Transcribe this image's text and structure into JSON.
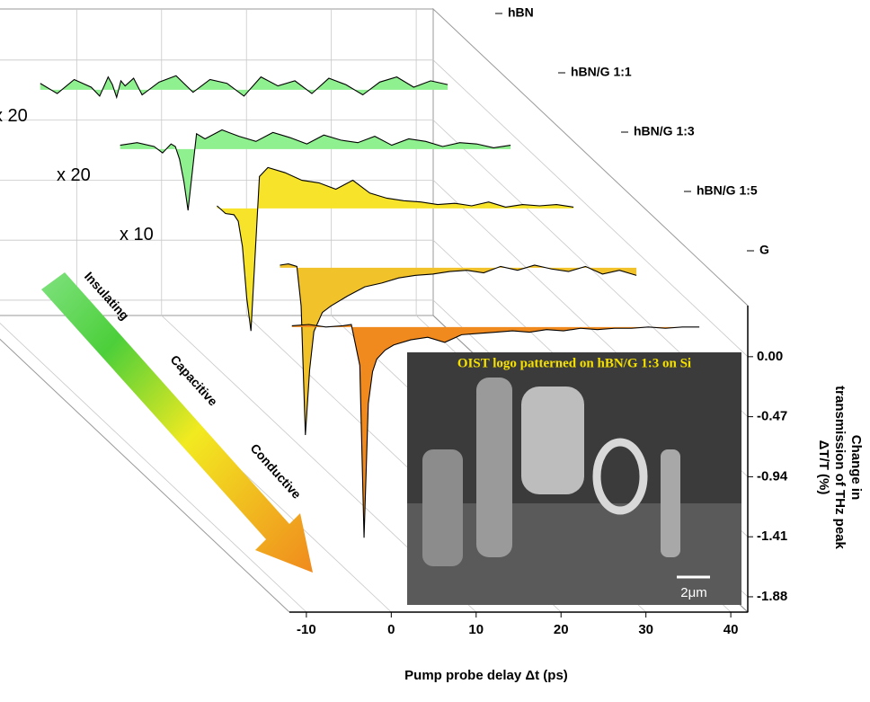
{
  "chart_data": {
    "type": "waterfall",
    "x_label": "Pump probe delay  Δt (ps)",
    "y_label": [
      "Change in",
      "transmission of THz peak",
      "ΔT/T (%)"
    ],
    "xlim": [
      -12,
      42
    ],
    "xticks": [
      -10,
      0,
      10,
      20,
      30,
      40
    ],
    "ylim": [
      -2.0,
      0.4
    ],
    "yticks": [
      {
        "value": 0,
        "label": "0.00"
      },
      -0.47,
      -0.94,
      -1.41,
      -1.88
    ],
    "grid": true,
    "x": [
      -8,
      -6,
      -4,
      -2,
      -1,
      0,
      0.5,
      1,
      1.5,
      2,
      3,
      4,
      6,
      8,
      10,
      12,
      14,
      16,
      18,
      20,
      22,
      24,
      26,
      28,
      30,
      32,
      34,
      36,
      38,
      40
    ],
    "series": [
      {
        "name": "hBN",
        "color": "#8ff08f",
        "multiplier": "x 20",
        "values": [
          0.05,
          -0.03,
          0.08,
          0.02,
          -0.05,
          0.1,
          0.04,
          -0.06,
          0.07,
          0.03,
          0.09,
          -0.04,
          0.06,
          0.11,
          -0.02,
          0.08,
          0.05,
          -0.05,
          0.1,
          0.03,
          0.07,
          -0.03,
          0.09,
          0.04,
          -0.04,
          0.06,
          0.1,
          0.02,
          0.07,
          0.04
        ]
      },
      {
        "name": "hBN/G 1:1",
        "color": "#8ff08f",
        "multiplier": "x 20",
        "values": [
          null,
          0.03,
          0.05,
          0.02,
          -0.03,
          0.04,
          0.02,
          -0.08,
          -0.25,
          -0.48,
          0.12,
          0.08,
          0.15,
          0.1,
          0.06,
          0.13,
          0.09,
          0.04,
          0.11,
          0.07,
          0.05,
          0.1,
          0.03,
          0.08,
          0.06,
          0.02,
          0.05,
          0.04,
          0.01,
          0.03
        ]
      },
      {
        "name": "hBN/G 1:3",
        "color": "#f7e42a",
        "multiplier": "x 10",
        "values": [
          null,
          null,
          null,
          0.02,
          -0.04,
          -0.05,
          -0.1,
          -0.3,
          -0.7,
          -0.96,
          0.25,
          0.32,
          0.28,
          0.22,
          0.2,
          0.15,
          0.22,
          0.12,
          0.08,
          0.06,
          0.05,
          0.03,
          0.04,
          0.02,
          0.05,
          0.01,
          0.03,
          0.02,
          0.03,
          0.01
        ]
      },
      {
        "name": "hBN/G 1:5",
        "color": "#f2c22a",
        "values": [
          null,
          null,
          null,
          0.02,
          0.03,
          0.01,
          -0.3,
          -1.31,
          -0.8,
          -0.5,
          -0.35,
          -0.3,
          -0.22,
          -0.15,
          -0.12,
          -0.08,
          -0.06,
          -0.05,
          -0.03,
          -0.02,
          -0.04,
          0.01,
          -0.02,
          0.02,
          -0.01,
          -0.03,
          0.01,
          -0.05,
          -0.02,
          -0.06
        ]
      },
      {
        "name": "G",
        "color": "#f08a1e",
        "values": [
          0.01,
          0.02,
          0,
          0.01,
          0.02,
          -0.3,
          -1.65,
          -0.6,
          -0.35,
          -0.25,
          -0.18,
          -0.14,
          -0.1,
          -0.08,
          -0.12,
          -0.06,
          -0.05,
          -0.04,
          -0.03,
          -0.04,
          -0.02,
          -0.03,
          -0.01,
          -0.02,
          -0.01,
          -0.01,
          0,
          -0.01,
          0,
          0
        ]
      }
    ],
    "arrow_labels": [
      "Insulating",
      "Capacitive",
      "Conductive"
    ],
    "inset": {
      "title": "OIST logo patterned on hBN/G 1:3 on Si",
      "scale": "2μm"
    }
  }
}
